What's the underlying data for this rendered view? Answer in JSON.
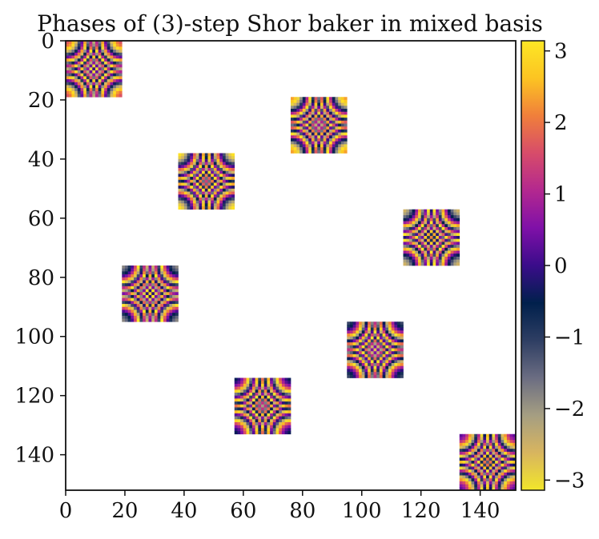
{
  "chart_data": {
    "type": "heatmap",
    "title": "Phases of (3)-step Shor baker in mixed basis",
    "xlabel": "",
    "ylabel": "",
    "matrix_size": 152,
    "xlim": [
      0,
      152
    ],
    "ylim": [
      152,
      0
    ],
    "x_ticks": [
      0,
      20,
      40,
      60,
      80,
      100,
      120,
      140
    ],
    "y_ticks": [
      0,
      20,
      40,
      60,
      80,
      100,
      120,
      140
    ],
    "x_tick_labels": [
      "0",
      "20",
      "40",
      "60",
      "80",
      "100",
      "120",
      "140"
    ],
    "y_tick_labels": [
      "0",
      "20",
      "40",
      "60",
      "80",
      "100",
      "120",
      "140"
    ],
    "blocks": [
      {
        "row": 0,
        "col": 0,
        "size": 19
      },
      {
        "row": 19,
        "col": 76,
        "size": 19
      },
      {
        "row": 38,
        "col": 38,
        "size": 19
      },
      {
        "row": 57,
        "col": 114,
        "size": 19
      },
      {
        "row": 76,
        "col": 19,
        "size": 19
      },
      {
        "row": 95,
        "col": 95,
        "size": 19
      },
      {
        "row": 114,
        "col": 57,
        "size": 19
      },
      {
        "row": 133,
        "col": 133,
        "size": 19
      }
    ],
    "colorbar": {
      "range": [
        -3.14159,
        3.14159
      ],
      "ticks": [
        3,
        2,
        1,
        0,
        -1,
        -2,
        -3
      ],
      "tick_labels": [
        "3",
        "2",
        "1",
        "0",
        "−1",
        "−2",
        "−3"
      ],
      "colormap": [
        "#f2e62a",
        "#d8b55f",
        "#a59e82",
        "#6b6d82",
        "#2e3e63",
        "#00204c",
        "#3a0c8a",
        "#7f10a8",
        "#b3288f",
        "#d74c6a",
        "#f07f3b",
        "#fcc422",
        "#fde725"
      ]
    }
  }
}
